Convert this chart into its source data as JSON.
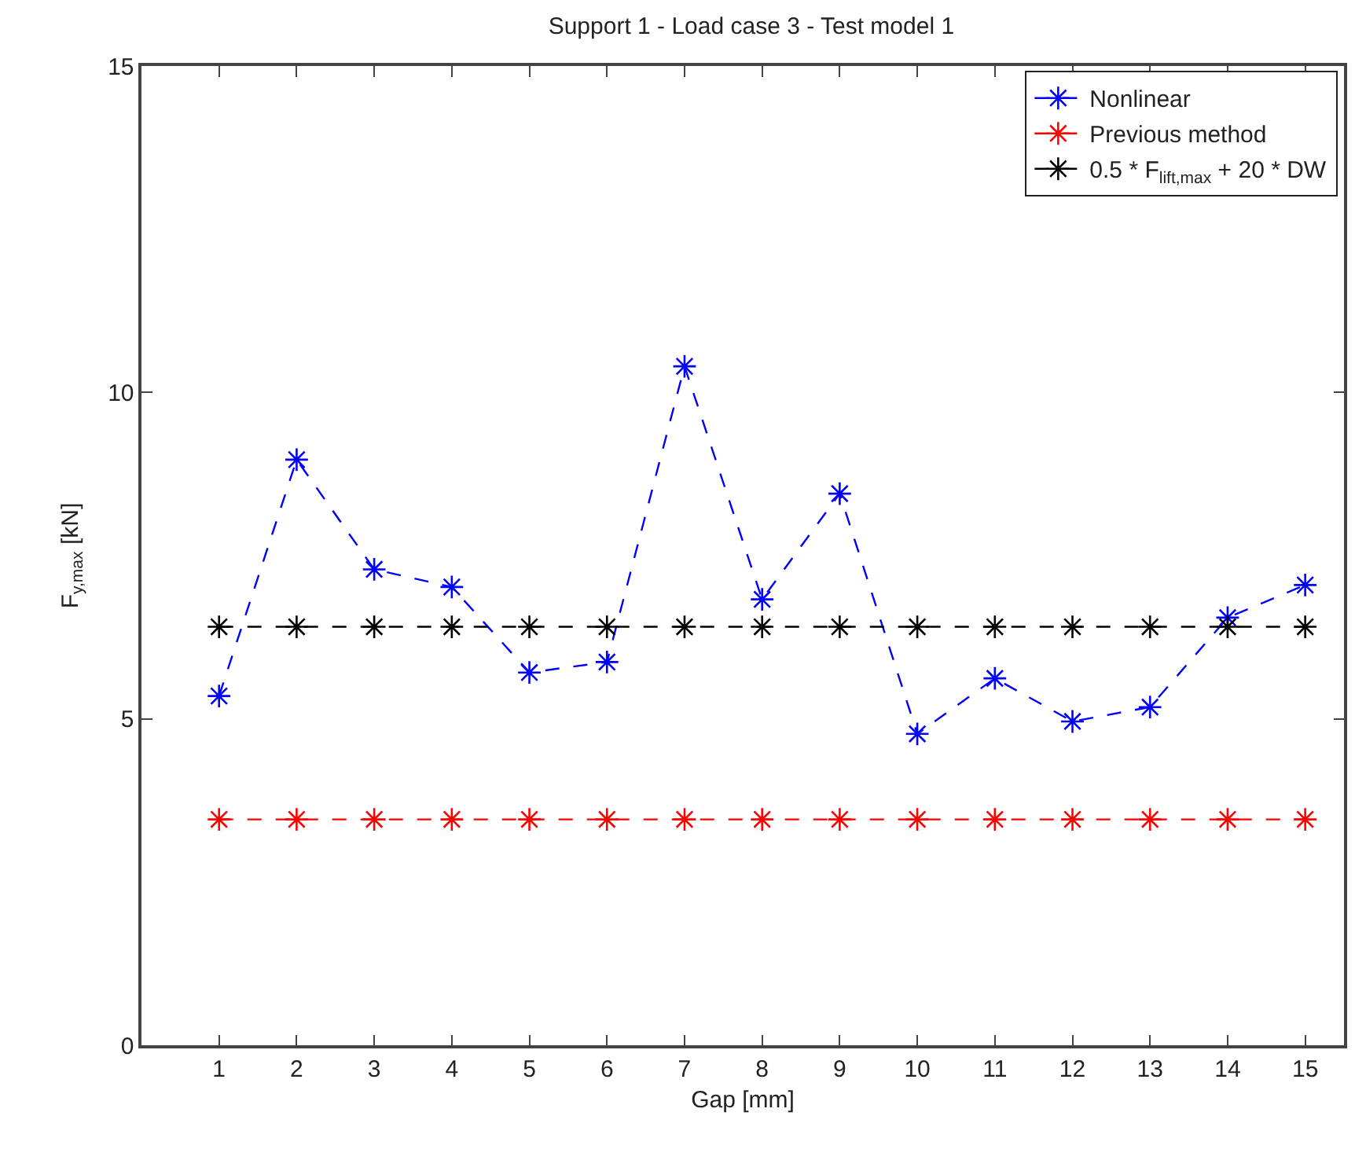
{
  "chart_data": {
    "type": "line",
    "title": "Support 1 - Load case 3 - Test model 1",
    "xlabel": "Gap [mm]",
    "ylabel": "F$_{y,max}$ [kN]",
    "x": [
      1,
      2,
      3,
      4,
      5,
      6,
      7,
      8,
      9,
      10,
      11,
      12,
      13,
      14,
      15
    ],
    "series": [
      {
        "name": "Nonlinear",
        "color": "#0000ff",
        "values": [
          5.35,
          8.97,
          7.29,
          7.02,
          5.71,
          5.87,
          10.4,
          6.83,
          8.45,
          4.77,
          5.62,
          4.96,
          5.18,
          6.55,
          7.05
        ]
      },
      {
        "name": "Previous method",
        "color": "#ff0000",
        "values": [
          3.46,
          3.46,
          3.46,
          3.46,
          3.46,
          3.46,
          3.46,
          3.46,
          3.46,
          3.46,
          3.46,
          3.46,
          3.46,
          3.46,
          3.46
        ]
      },
      {
        "name": "0.5 * F$_{lift,max}$ + 20 * DW",
        "color": "#000000",
        "values": [
          6.41,
          6.41,
          6.41,
          6.41,
          6.41,
          6.41,
          6.41,
          6.41,
          6.41,
          6.41,
          6.41,
          6.41,
          6.41,
          6.41,
          6.41
        ]
      }
    ],
    "xlim": [
      0,
      15.5
    ],
    "xticks": [
      1,
      2,
      3,
      4,
      5,
      6,
      7,
      8,
      9,
      10,
      11,
      12,
      13,
      14,
      15
    ],
    "ylim": [
      0,
      15
    ],
    "yticks": [
      0,
      5,
      10,
      15
    ],
    "legend": "top right",
    "marker": "cross",
    "line_style": "dashed"
  }
}
